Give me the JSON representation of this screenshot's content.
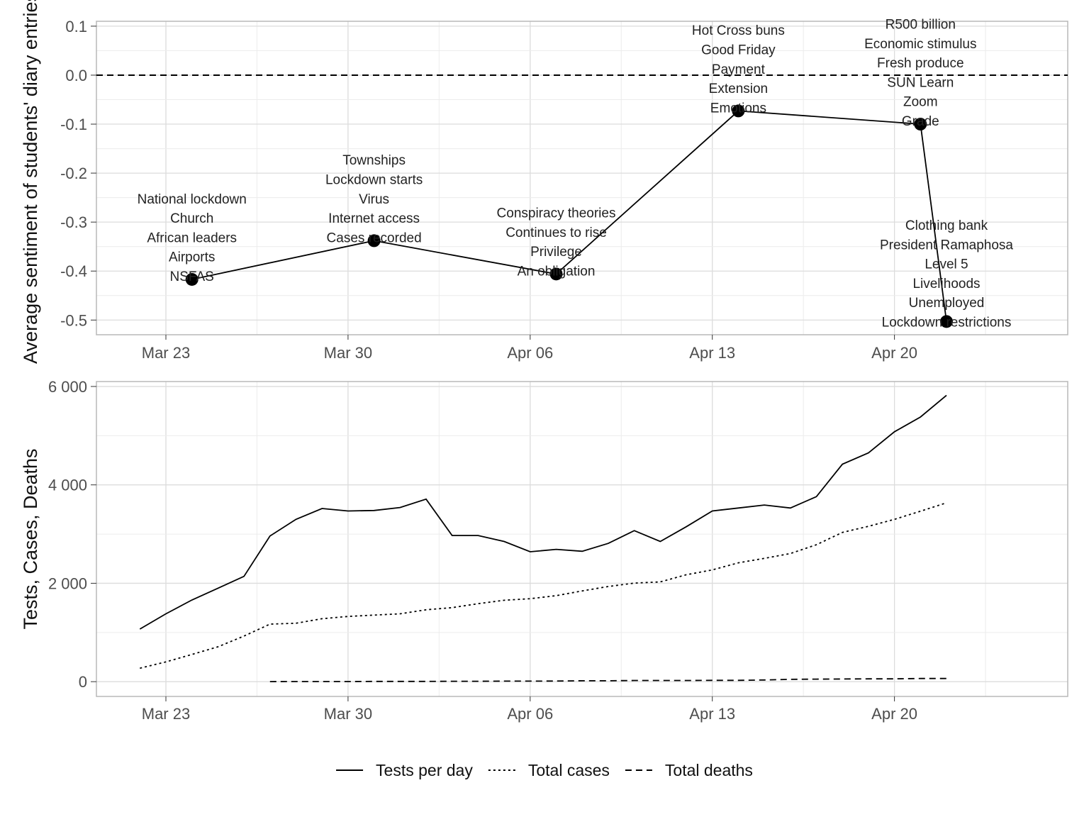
{
  "chart_data": [
    {
      "type": "line",
      "ylabel": "Average sentiment of students' diary entries",
      "x_ticks": [
        "Mar 23",
        "Mar 30",
        "Apr 06",
        "Apr 13",
        "Apr 20"
      ],
      "y_ticks": [
        "0.1",
        "0.0",
        "-0.1",
        "-0.2",
        "-0.3",
        "-0.4",
        "-0.5"
      ],
      "ylim": [
        -0.53,
        0.11
      ],
      "reference_line": 0.0,
      "series": [
        {
          "points": [
            {
              "date": "2020-03-24",
              "value": -0.417,
              "keywords": [
                "National lockdown",
                "Church",
                "African leaders",
                "Airports",
                "NSFAS"
              ]
            },
            {
              "date": "2020-03-31",
              "value": -0.338,
              "keywords": [
                "Townships",
                "Lockdown starts",
                "Virus",
                "Internet access",
                "Cases recorded"
              ]
            },
            {
              "date": "2020-04-07",
              "value": -0.406,
              "keywords": [
                "Conspiracy theories",
                "Continues to rise",
                "Privilege",
                "An obligation"
              ]
            },
            {
              "date": "2020-04-14",
              "value": -0.073,
              "keywords": [
                "Hot Cross buns",
                "Good Friday",
                "Payment",
                "Extension",
                "Emotions"
              ]
            },
            {
              "date": "2020-04-21",
              "value": -0.1,
              "keywords": [
                "R500 billion",
                "Economic stimulus",
                "Fresh produce",
                "SUN Learn",
                "Zoom",
                "Grade"
              ]
            },
            {
              "date": "2020-04-22",
              "value": -0.503,
              "keywords": [
                "Clothing bank",
                "President Ramaphosa",
                "Level 5",
                "Livelihoods",
                "Unemployed",
                "Lockdown restrictions"
              ]
            }
          ]
        }
      ]
    },
    {
      "type": "line",
      "ylabel": "Tests, Cases, Deaths",
      "x_ticks": [
        "Mar 23",
        "Mar 30",
        "Apr 06",
        "Apr 13",
        "Apr 20"
      ],
      "y_ticks": [
        "6 000",
        "4 000",
        "2 000",
        "0"
      ],
      "ylim": [
        -300,
        6100
      ],
      "series": [
        {
          "name": "Tests per day",
          "style": "solid",
          "x": [
            "2020-03-22",
            "2020-03-23",
            "2020-03-24",
            "2020-03-25",
            "2020-03-26",
            "2020-03-27",
            "2020-03-28",
            "2020-03-29",
            "2020-03-30",
            "2020-03-31",
            "2020-04-01",
            "2020-04-02",
            "2020-04-03",
            "2020-04-04",
            "2020-04-05",
            "2020-04-06",
            "2020-04-07",
            "2020-04-08",
            "2020-04-09",
            "2020-04-10",
            "2020-04-11",
            "2020-04-12",
            "2020-04-13",
            "2020-04-14",
            "2020-04-15",
            "2020-04-16",
            "2020-04-17",
            "2020-04-18",
            "2020-04-19",
            "2020-04-20",
            "2020-04-21",
            "2020-04-22"
          ],
          "values": [
            1070,
            1380,
            1660,
            1900,
            2140,
            2960,
            3300,
            3520,
            3470,
            3480,
            3540,
            3710,
            2970,
            2970,
            2850,
            2640,
            2690,
            2650,
            2810,
            3070,
            2850,
            3150,
            3470,
            3530,
            3590,
            3530,
            3760,
            4420,
            4650,
            5080,
            5380,
            5820
          ]
        },
        {
          "name": "Total cases",
          "style": "dotted",
          "x": [
            "2020-03-22",
            "2020-03-23",
            "2020-03-24",
            "2020-03-25",
            "2020-03-26",
            "2020-03-27",
            "2020-03-28",
            "2020-03-29",
            "2020-03-30",
            "2020-03-31",
            "2020-04-01",
            "2020-04-02",
            "2020-04-03",
            "2020-04-04",
            "2020-04-05",
            "2020-04-06",
            "2020-04-07",
            "2020-04-08",
            "2020-04-09",
            "2020-04-10",
            "2020-04-11",
            "2020-04-12",
            "2020-04-13",
            "2020-04-14",
            "2020-04-15",
            "2020-04-16",
            "2020-04-17",
            "2020-04-18",
            "2020-04-19",
            "2020-04-20",
            "2020-04-21",
            "2020-04-22"
          ],
          "values": [
            274,
            402,
            554,
            709,
            927,
            1170,
            1187,
            1280,
            1326,
            1353,
            1380,
            1462,
            1505,
            1585,
            1655,
            1686,
            1749,
            1845,
            1934,
            2003,
            2028,
            2173,
            2272,
            2415,
            2506,
            2605,
            2783,
            3034,
            3158,
            3300,
            3465,
            3635
          ]
        },
        {
          "name": "Total deaths",
          "style": "dashed",
          "x": [
            "2020-03-27",
            "2020-03-28",
            "2020-03-29",
            "2020-03-30",
            "2020-03-31",
            "2020-04-01",
            "2020-04-02",
            "2020-04-03",
            "2020-04-04",
            "2020-04-05",
            "2020-04-06",
            "2020-04-07",
            "2020-04-08",
            "2020-04-09",
            "2020-04-10",
            "2020-04-11",
            "2020-04-12",
            "2020-04-13",
            "2020-04-14",
            "2020-04-15",
            "2020-04-16",
            "2020-04-17",
            "2020-04-18",
            "2020-04-19",
            "2020-04-20",
            "2020-04-21",
            "2020-04-22"
          ],
          "values": [
            1,
            2,
            3,
            3,
            5,
            5,
            5,
            9,
            9,
            11,
            12,
            13,
            18,
            18,
            24,
            25,
            25,
            27,
            27,
            34,
            48,
            52,
            54,
            58,
            58,
            65,
            65
          ]
        }
      ]
    }
  ],
  "legend": {
    "position": "bottom",
    "entries": [
      {
        "label": "Tests per day",
        "style": "solid"
      },
      {
        "label": "Total cases",
        "style": "dotted"
      },
      {
        "label": "Total deaths",
        "style": "dashed"
      }
    ]
  }
}
